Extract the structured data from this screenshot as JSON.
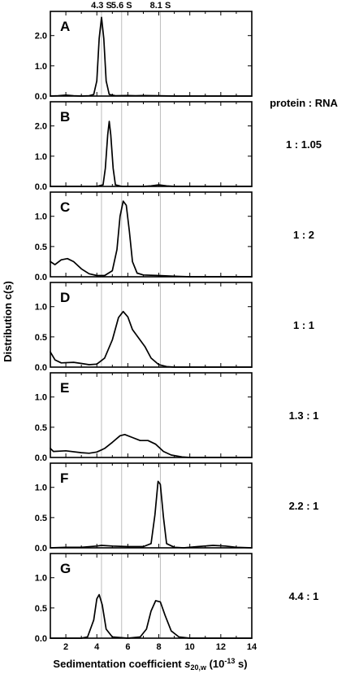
{
  "chart_data": {
    "type": "line",
    "ylabel": "Distribution c(s)",
    "xlabel_prefix": "Sedimentation coefficient ",
    "xlabel_symbol": "s",
    "xlabel_subscript": "20,w",
    "xlabel_suffix_open": " (10",
    "xlabel_superscript": "-13",
    "xlabel_suffix_close": " s)",
    "xlim": [
      1,
      14
    ],
    "x_ticks": [
      "2",
      "4",
      "6",
      "8",
      "10",
      "12",
      "14"
    ],
    "x_tick_values": [
      2,
      4,
      6,
      8,
      10,
      12,
      14
    ],
    "ratio_header": "protein : RNA",
    "reference_lines": [
      {
        "label": "4.3 S",
        "x": 4.3
      },
      {
        "label": "5.6 S",
        "x": 5.6
      },
      {
        "label": "8.1 S",
        "x": 8.1
      }
    ],
    "panels": [
      {
        "letter": "A",
        "ratio": "",
        "ylim": [
          0,
          2.8
        ],
        "y_ticks": [
          "0.0",
          "1.0",
          "2.0"
        ],
        "y_tick_values": [
          0,
          1,
          2
        ],
        "points": [
          [
            1,
            0.0
          ],
          [
            1.5,
            0.01
          ],
          [
            2,
            0.03
          ],
          [
            2.5,
            0.01
          ],
          [
            3,
            0.0
          ],
          [
            3.5,
            0.01
          ],
          [
            3.8,
            0.05
          ],
          [
            4.0,
            0.5
          ],
          [
            4.15,
            1.9
          ],
          [
            4.3,
            2.6
          ],
          [
            4.45,
            1.9
          ],
          [
            4.6,
            0.5
          ],
          [
            4.8,
            0.05
          ],
          [
            5.2,
            0.01
          ],
          [
            6,
            0.02
          ],
          [
            6.5,
            0.01
          ],
          [
            7,
            0.02
          ],
          [
            8,
            0.01
          ],
          [
            9,
            0.0
          ],
          [
            10,
            0.0
          ],
          [
            12,
            0.0
          ],
          [
            14,
            0.0
          ]
        ]
      },
      {
        "letter": "B",
        "ratio": "1 : 1.05",
        "ylim": [
          0,
          2.8
        ],
        "y_ticks": [
          "0.0",
          "1.0",
          "2.0"
        ],
        "y_tick_values": [
          0,
          1,
          2
        ],
        "points": [
          [
            1,
            0.0
          ],
          [
            2,
            0.0
          ],
          [
            3,
            0.0
          ],
          [
            4,
            0.0
          ],
          [
            4.4,
            0.05
          ],
          [
            4.55,
            0.6
          ],
          [
            4.7,
            1.7
          ],
          [
            4.8,
            2.15
          ],
          [
            4.9,
            1.7
          ],
          [
            5.05,
            0.6
          ],
          [
            5.2,
            0.05
          ],
          [
            5.6,
            0.0
          ],
          [
            6,
            0.0
          ],
          [
            7,
            0.0
          ],
          [
            7.5,
            0.02
          ],
          [
            8,
            0.05
          ],
          [
            8.5,
            0.02
          ],
          [
            9,
            0.0
          ],
          [
            10,
            0.0
          ],
          [
            12,
            0.0
          ],
          [
            14,
            0.0
          ]
        ]
      },
      {
        "letter": "C",
        "ratio": "1 : 2",
        "ylim": [
          0,
          1.4
        ],
        "y_ticks": [
          "0.0",
          "0.5",
          "1.0"
        ],
        "y_tick_values": [
          0,
          0.5,
          1.0
        ],
        "points": [
          [
            1,
            0.25
          ],
          [
            1.3,
            0.2
          ],
          [
            1.7,
            0.28
          ],
          [
            2.1,
            0.3
          ],
          [
            2.5,
            0.25
          ],
          [
            3,
            0.13
          ],
          [
            3.5,
            0.05
          ],
          [
            4,
            0.02
          ],
          [
            4.5,
            0.02
          ],
          [
            5,
            0.1
          ],
          [
            5.3,
            0.45
          ],
          [
            5.5,
            1.0
          ],
          [
            5.7,
            1.25
          ],
          [
            5.9,
            1.18
          ],
          [
            6.1,
            0.75
          ],
          [
            6.3,
            0.25
          ],
          [
            6.6,
            0.06
          ],
          [
            7,
            0.03
          ],
          [
            8,
            0.02
          ],
          [
            9,
            0.01
          ],
          [
            10,
            0.0
          ],
          [
            12,
            0.0
          ],
          [
            14,
            0.0
          ]
        ]
      },
      {
        "letter": "D",
        "ratio": "1 : 1",
        "ylim": [
          0,
          1.4
        ],
        "y_ticks": [
          "0.0",
          "0.5",
          "1.0"
        ],
        "y_tick_values": [
          0,
          0.5,
          1.0
        ],
        "points": [
          [
            1,
            0.25
          ],
          [
            1.3,
            0.12
          ],
          [
            1.7,
            0.07
          ],
          [
            2.5,
            0.08
          ],
          [
            3,
            0.06
          ],
          [
            3.5,
            0.04
          ],
          [
            4,
            0.05
          ],
          [
            4.5,
            0.15
          ],
          [
            5,
            0.45
          ],
          [
            5.4,
            0.82
          ],
          [
            5.7,
            0.92
          ],
          [
            6.0,
            0.83
          ],
          [
            6.3,
            0.62
          ],
          [
            6.7,
            0.48
          ],
          [
            7.1,
            0.34
          ],
          [
            7.5,
            0.15
          ],
          [
            8,
            0.04
          ],
          [
            8.5,
            0.01
          ],
          [
            9,
            0.0
          ],
          [
            10,
            0.0
          ],
          [
            12,
            0.0
          ],
          [
            14,
            0.0
          ]
        ]
      },
      {
        "letter": "E",
        "ratio": "1.3 : 1",
        "ylim": [
          0,
          1.4
        ],
        "y_ticks": [
          "0.0",
          "0.5",
          "1.0"
        ],
        "y_tick_values": [
          0,
          0.5,
          1.0
        ],
        "points": [
          [
            1,
            0.15
          ],
          [
            1.2,
            0.1
          ],
          [
            2,
            0.11
          ],
          [
            3,
            0.08
          ],
          [
            3.5,
            0.07
          ],
          [
            4,
            0.09
          ],
          [
            4.5,
            0.15
          ],
          [
            5,
            0.25
          ],
          [
            5.5,
            0.36
          ],
          [
            5.8,
            0.38
          ],
          [
            6.3,
            0.33
          ],
          [
            6.8,
            0.28
          ],
          [
            7.3,
            0.28
          ],
          [
            7.8,
            0.22
          ],
          [
            8.3,
            0.1
          ],
          [
            8.8,
            0.04
          ],
          [
            9.5,
            0.01
          ],
          [
            10,
            0.0
          ],
          [
            12,
            0.0
          ],
          [
            14,
            0.0
          ]
        ]
      },
      {
        "letter": "F",
        "ratio": "2.2 : 1",
        "ylim": [
          0,
          1.4
        ],
        "y_ticks": [
          "0.0",
          "0.5",
          "1.0"
        ],
        "y_tick_values": [
          0,
          0.5,
          1.0
        ],
        "points": [
          [
            1,
            0.0
          ],
          [
            2,
            0.01
          ],
          [
            3,
            0.01
          ],
          [
            4,
            0.03
          ],
          [
            4.3,
            0.04
          ],
          [
            5,
            0.03
          ],
          [
            6,
            0.02
          ],
          [
            7,
            0.02
          ],
          [
            7.5,
            0.07
          ],
          [
            7.75,
            0.55
          ],
          [
            7.95,
            1.1
          ],
          [
            8.1,
            1.05
          ],
          [
            8.3,
            0.5
          ],
          [
            8.5,
            0.07
          ],
          [
            9,
            0.01
          ],
          [
            9.6,
            0.0
          ],
          [
            10.5,
            0.02
          ],
          [
            11.5,
            0.04
          ],
          [
            12.3,
            0.03
          ],
          [
            13,
            0.01
          ],
          [
            14,
            0.0
          ]
        ]
      },
      {
        "letter": "G",
        "ratio": "4.4 : 1",
        "ylim": [
          0,
          1.4
        ],
        "y_ticks": [
          "0.0",
          "0.5",
          "1.0"
        ],
        "y_tick_values": [
          0,
          0.5,
          1.0
        ],
        "points": [
          [
            1,
            0.0
          ],
          [
            2,
            0.0
          ],
          [
            3,
            0.0
          ],
          [
            3.4,
            0.02
          ],
          [
            3.8,
            0.3
          ],
          [
            4.0,
            0.65
          ],
          [
            4.15,
            0.72
          ],
          [
            4.35,
            0.55
          ],
          [
            4.6,
            0.15
          ],
          [
            5,
            0.02
          ],
          [
            6,
            0.0
          ],
          [
            6.8,
            0.02
          ],
          [
            7.2,
            0.15
          ],
          [
            7.5,
            0.45
          ],
          [
            7.8,
            0.62
          ],
          [
            8.1,
            0.6
          ],
          [
            8.4,
            0.38
          ],
          [
            8.8,
            0.12
          ],
          [
            9.3,
            0.02
          ],
          [
            10,
            0.0
          ],
          [
            12,
            0.0
          ],
          [
            14,
            0.0
          ]
        ]
      }
    ]
  }
}
